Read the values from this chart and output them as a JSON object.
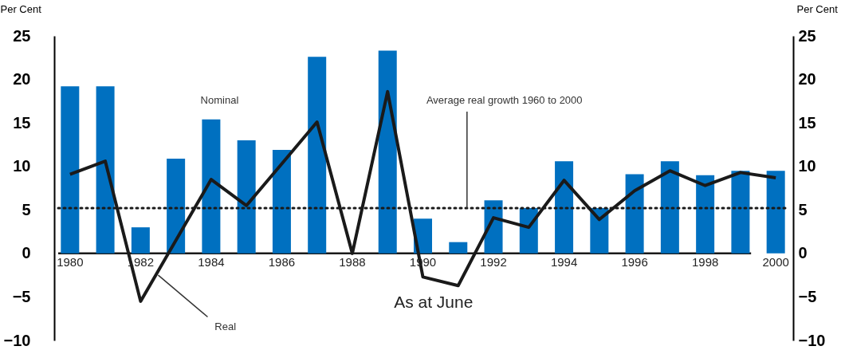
{
  "chart_data": {
    "type": "bar",
    "ylabel": "Per Cent",
    "y2label": "Per Cent",
    "categories": [
      "1980",
      null,
      "1982",
      null,
      "1984",
      null,
      "1986",
      null,
      "1988",
      null,
      "1990",
      null,
      "1992",
      null,
      "1994",
      null,
      "1996",
      null,
      "1998",
      null,
      "2000"
    ],
    "series": [
      {
        "name": "Nominal",
        "type": "bar",
        "color": "#0070c0",
        "values": [
          19.2,
          19.2,
          3.0,
          10.9,
          15.4,
          13.0,
          11.9,
          22.6,
          0,
          23.3,
          4.0,
          1.3,
          6.1,
          5.2,
          10.6,
          5.2,
          9.1,
          10.6,
          9.0,
          9.5,
          9.5
        ]
      },
      {
        "name": "Real",
        "type": "line",
        "color": "#1a1a1a",
        "line_style": "solid",
        "values": [
          9.1,
          10.6,
          -5.5,
          1.5,
          8.5,
          5.5,
          10.3,
          15.1,
          0,
          18.6,
          -2.7,
          -3.7,
          4.1,
          3.0,
          8.4,
          3.9,
          7.2,
          9.5,
          7.8,
          9.3,
          8.7
        ]
      }
    ],
    "ylim": [
      -10,
      25
    ],
    "yticks": [
      -10,
      -5,
      0,
      5,
      10,
      15,
      20,
      25
    ],
    "y2lim": [
      -10,
      25
    ],
    "y2ticks": [
      -10,
      -5,
      0,
      5,
      10,
      15,
      20,
      25
    ],
    "ref_lines": [
      {
        "axis": "y",
        "value": 5.2,
        "label": "Average real growth 1960 to 2000",
        "color": "#1a1a1a",
        "line_style": "dotted"
      }
    ],
    "annotations": [
      "As at June"
    ],
    "grid": false,
    "legend": false
  }
}
